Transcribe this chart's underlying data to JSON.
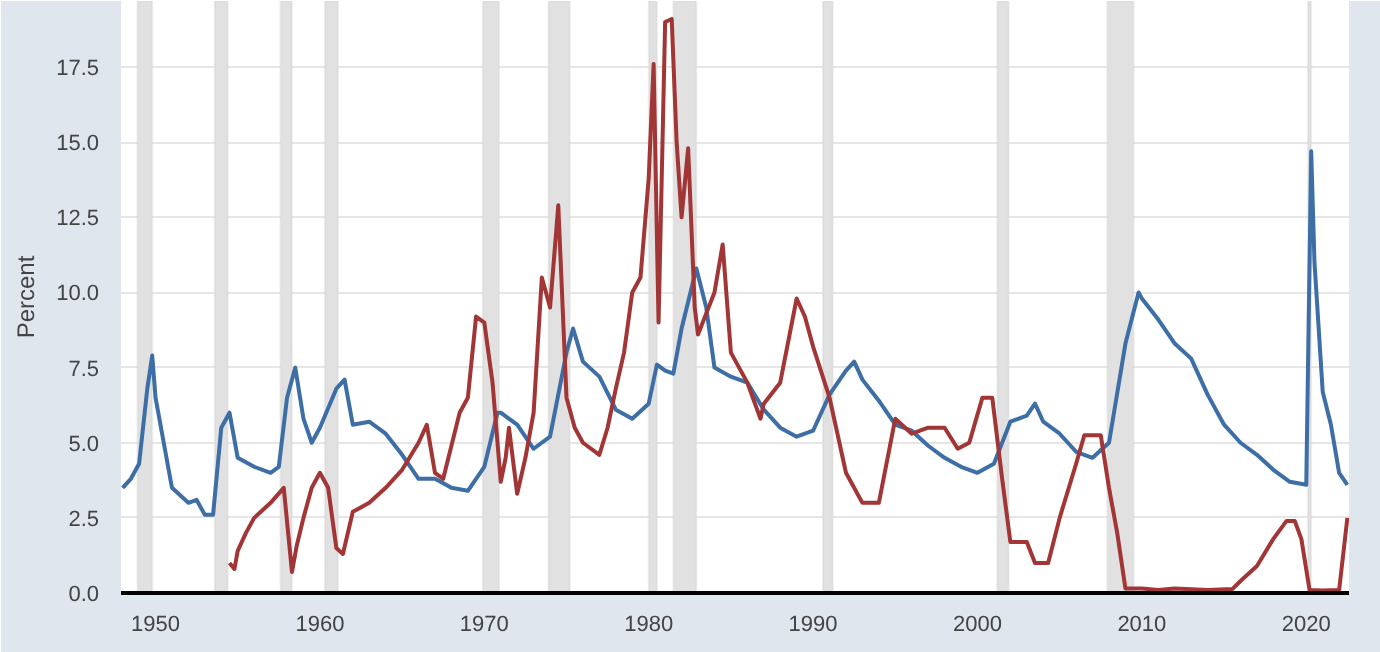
{
  "chart_data": {
    "type": "line",
    "ylabel": "Percent",
    "xlim": [
      1947.9,
      2022.6
    ],
    "ylim": [
      0,
      19.7
    ],
    "xticks": [
      1950,
      1960,
      1970,
      1980,
      1990,
      2000,
      2010,
      2020
    ],
    "yticks": [
      {
        "value": 0,
        "label": "0.0"
      },
      2.5,
      {
        "value": 5,
        "label": "5.0"
      },
      7.5,
      {
        "value": 10,
        "label": "10.0"
      },
      12.5,
      {
        "value": 15,
        "label": "15.0"
      },
      17.5
    ],
    "grid": "y",
    "line_style": "solid",
    "marker": "none",
    "bands": [
      {
        "axis": "x",
        "from": 1948.9,
        "to": 1949.8,
        "label": null,
        "color": "#e1e1e1"
      },
      {
        "axis": "x",
        "from": 1953.6,
        "to": 1954.4,
        "label": null,
        "color": "#e1e1e1"
      },
      {
        "axis": "x",
        "from": 1957.6,
        "to": 1958.3,
        "label": null,
        "color": "#e1e1e1"
      },
      {
        "axis": "x",
        "from": 1960.3,
        "to": 1961.1,
        "label": null,
        "color": "#e1e1e1"
      },
      {
        "axis": "x",
        "from": 1969.9,
        "to": 1970.9,
        "label": null,
        "color": "#e1e1e1"
      },
      {
        "axis": "x",
        "from": 1973.9,
        "to": 1975.2,
        "label": null,
        "color": "#e1e1e1"
      },
      {
        "axis": "x",
        "from": 1980.0,
        "to": 1980.5,
        "label": null,
        "color": "#e1e1e1"
      },
      {
        "axis": "x",
        "from": 1981.5,
        "to": 1982.9,
        "label": null,
        "color": "#e1e1e1"
      },
      {
        "axis": "x",
        "from": 1990.6,
        "to": 1991.2,
        "label": null,
        "color": "#e1e1e1"
      },
      {
        "axis": "x",
        "from": 2001.2,
        "to": 2001.9,
        "label": null,
        "color": "#e1e1e1"
      },
      {
        "axis": "x",
        "from": 2007.9,
        "to": 2009.5,
        "label": null,
        "color": "#e1e1e1"
      },
      {
        "axis": "x",
        "from": 2020.1,
        "to": 2020.3,
        "label": null,
        "color": "#e1e1e1"
      }
    ],
    "series": [
      {
        "color": "#3d6ea5",
        "x": [
          1948,
          1948.5,
          1949,
          1949.5,
          1949.8,
          1950,
          1950.5,
          1951,
          1952,
          1952.5,
          1953,
          1953.5,
          1954,
          1954.5,
          1955,
          1956,
          1957,
          1957.5,
          1958,
          1958.5,
          1959,
          1959.5,
          1960,
          1961,
          1961.5,
          1962,
          1963,
          1964,
          1965,
          1966,
          1967,
          1968,
          1969,
          1970,
          1970.8,
          1971,
          1972,
          1973,
          1974,
          1975,
          1975.4,
          1976,
          1977,
          1978,
          1979,
          1980,
          1980.5,
          1981,
          1981.5,
          1982,
          1982.9,
          1983.5,
          1984,
          1985,
          1986,
          1987,
          1988,
          1989,
          1990,
          1991,
          1992,
          1992.5,
          1993,
          1994,
          1995,
          1996,
          1997,
          1998,
          1999,
          2000,
          2001,
          2002,
          2003,
          2003.5,
          2004,
          2005,
          2006,
          2007,
          2008,
          2009,
          2009.8,
          2010,
          2011,
          2012,
          2013,
          2014,
          2015,
          2016,
          2017,
          2018,
          2019,
          2020,
          2020.3,
          2020.5,
          2021,
          2021.5,
          2022,
          2022.5
        ],
        "values": [
          3.5,
          3.8,
          4.3,
          6.8,
          7.9,
          6.5,
          5.0,
          3.5,
          3.0,
          3.1,
          2.6,
          2.6,
          5.5,
          6.0,
          4.5,
          4.2,
          4.0,
          4.2,
          6.5,
          7.5,
          5.8,
          5.0,
          5.5,
          6.8,
          7.1,
          5.6,
          5.7,
          5.3,
          4.6,
          3.8,
          3.8,
          3.5,
          3.4,
          4.2,
          6.0,
          6.0,
          5.6,
          4.8,
          5.2,
          8.0,
          8.8,
          7.7,
          7.2,
          6.1,
          5.8,
          6.3,
          7.6,
          7.4,
          7.3,
          8.8,
          10.8,
          9.5,
          7.5,
          7.2,
          7.0,
          6.1,
          5.5,
          5.2,
          5.4,
          6.6,
          7.4,
          7.7,
          7.1,
          6.4,
          5.6,
          5.4,
          4.9,
          4.5,
          4.2,
          4.0,
          4.3,
          5.7,
          5.9,
          6.3,
          5.7,
          5.3,
          4.7,
          4.5,
          5.0,
          8.3,
          10.0,
          9.8,
          9.1,
          8.3,
          7.8,
          6.6,
          5.6,
          5.0,
          4.6,
          4.1,
          3.7,
          3.6,
          14.7,
          11.0,
          6.7,
          5.6,
          4.0,
          3.6
        ]
      },
      {
        "color": "#a23535",
        "x": [
          1954.5,
          1954.8,
          1955,
          1955.5,
          1956,
          1957,
          1957.8,
          1958.3,
          1958.6,
          1959,
          1959.5,
          1960,
          1960.5,
          1961,
          1961.4,
          1962,
          1963,
          1964,
          1965,
          1966,
          1966.5,
          1967,
          1967.5,
          1968,
          1968.5,
          1969,
          1969.5,
          1970,
          1970.5,
          1971,
          1971.3,
          1971.5,
          1972,
          1972.5,
          1973,
          1973.5,
          1974,
          1974.5,
          1975,
          1975.5,
          1976,
          1977,
          1977.5,
          1978,
          1978.5,
          1979,
          1979.5,
          1980,
          1980.3,
          1980.6,
          1981,
          1981.4,
          1981.7,
          1982,
          1982.4,
          1982.8,
          1983,
          1984,
          1984.5,
          1985,
          1986,
          1986.8,
          1987,
          1988,
          1989,
          1989.5,
          1990,
          1991,
          1992,
          1993,
          1994,
          1995,
          1996,
          1997,
          1998,
          1998.8,
          1999.5,
          2000.3,
          2000.9,
          2001.5,
          2002,
          2003,
          2003.5,
          2004.3,
          2005,
          2006,
          2006.5,
          2007.5,
          2008,
          2008.5,
          2009,
          2010,
          2011,
          2012,
          2014,
          2015.5,
          2016,
          2017,
          2018,
          2018.8,
          2019.3,
          2019.7,
          2020.2,
          2021,
          2022,
          2022.5
        ],
        "values": [
          1.0,
          0.8,
          1.4,
          2.0,
          2.5,
          3.0,
          3.5,
          0.7,
          1.6,
          2.5,
          3.5,
          4.0,
          3.5,
          1.5,
          1.3,
          2.7,
          3.0,
          3.5,
          4.1,
          5.0,
          5.6,
          4.0,
          3.8,
          4.9,
          6.0,
          6.5,
          9.2,
          9.0,
          7.0,
          3.7,
          4.5,
          5.5,
          3.3,
          4.5,
          6.0,
          10.5,
          9.5,
          12.9,
          6.5,
          5.5,
          5.0,
          4.6,
          5.5,
          6.8,
          8.0,
          10.0,
          10.5,
          13.8,
          17.6,
          9.0,
          19.0,
          19.1,
          15.0,
          12.5,
          14.8,
          9.5,
          8.6,
          10.0,
          11.6,
          8.0,
          7.0,
          5.8,
          6.3,
          7.0,
          9.8,
          9.2,
          8.2,
          6.5,
          4.0,
          3.0,
          3.0,
          5.8,
          5.3,
          5.5,
          5.5,
          4.8,
          5.0,
          6.5,
          6.5,
          3.8,
          1.7,
          1.7,
          1.0,
          1.0,
          2.5,
          4.3,
          5.25,
          5.25,
          3.5,
          2.0,
          0.15,
          0.15,
          0.1,
          0.15,
          0.1,
          0.13,
          0.4,
          0.9,
          1.8,
          2.4,
          2.4,
          1.8,
          0.1,
          0.08,
          0.1,
          2.5
        ]
      }
    ]
  }
}
